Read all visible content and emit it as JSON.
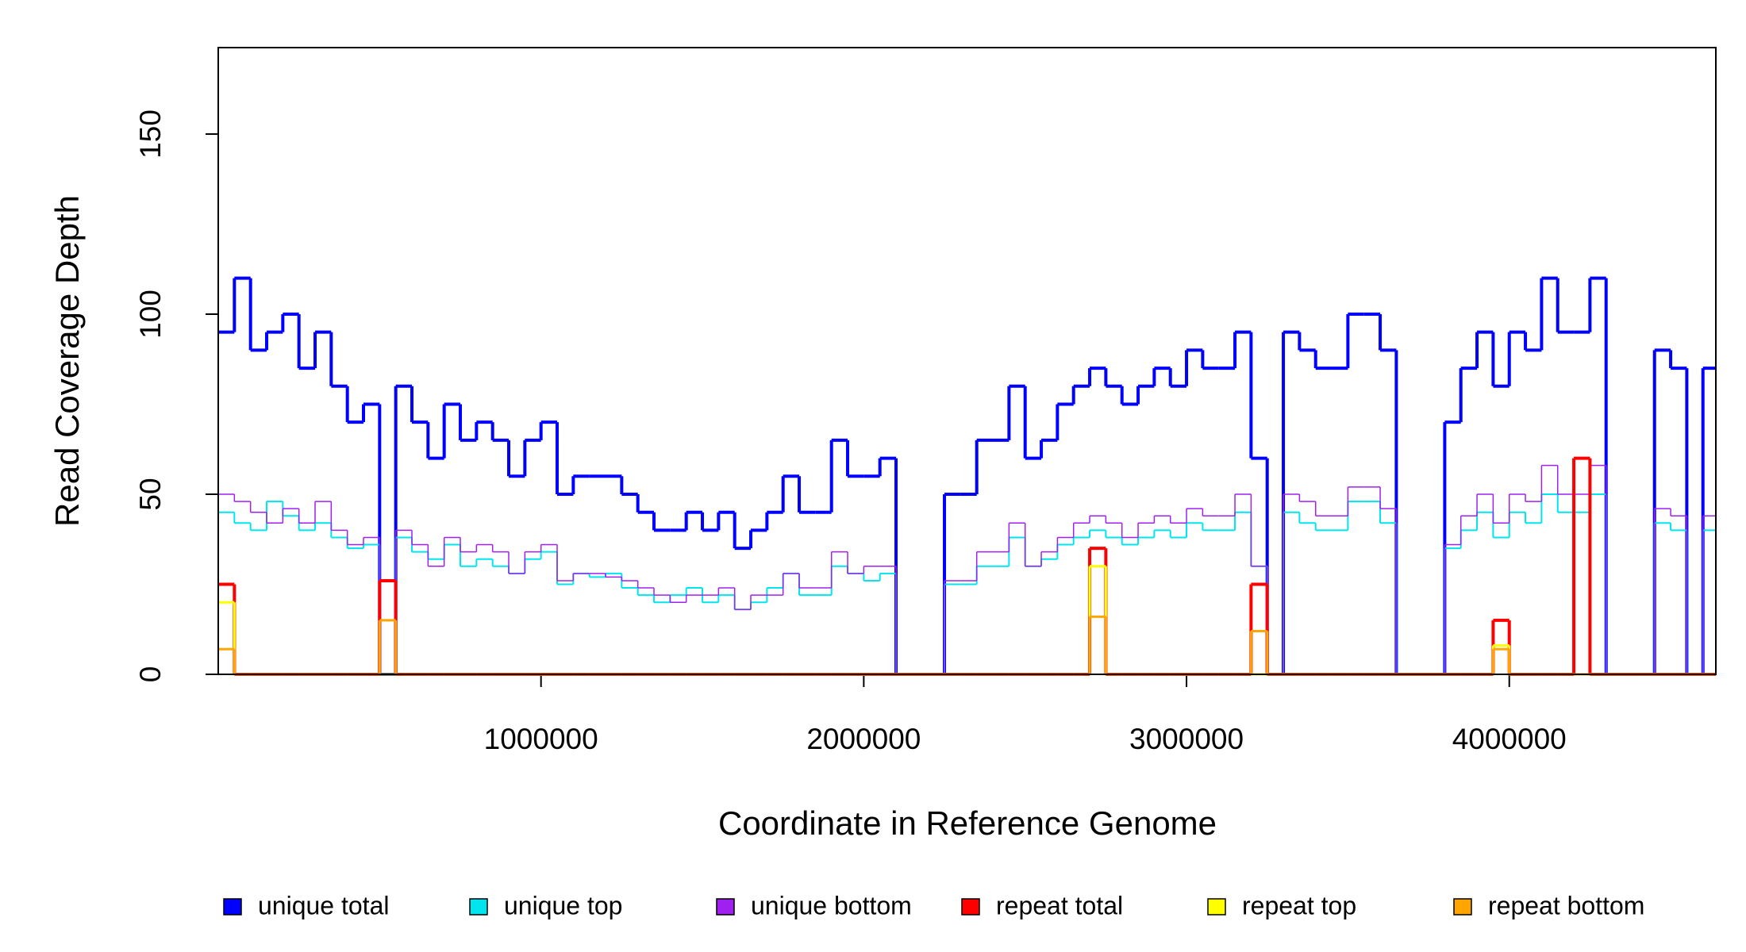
{
  "chart_data": {
    "type": "step",
    "xlabel": "Coordinate in Reference Genome",
    "ylabel": "Read Coverage Depth",
    "xlim": [
      0,
      4640000
    ],
    "ylim": [
      0,
      174
    ],
    "xticks": [
      1000000,
      2000000,
      3000000,
      4000000
    ],
    "yticks": [
      0,
      50,
      100,
      150
    ],
    "x": [
      0,
      50000,
      100000,
      150000,
      200000,
      250000,
      300000,
      350000,
      400000,
      450000,
      500000,
      550000,
      600000,
      650000,
      700000,
      750000,
      800000,
      850000,
      900000,
      950000,
      1000000,
      1050000,
      1100000,
      1150000,
      1200000,
      1250000,
      1300000,
      1350000,
      1400000,
      1450000,
      1500000,
      1550000,
      1600000,
      1650000,
      1700000,
      1750000,
      1800000,
      1850000,
      1900000,
      1950000,
      2000000,
      2050000,
      2100000,
      2150000,
      2200000,
      2250000,
      2300000,
      2350000,
      2400000,
      2450000,
      2500000,
      2550000,
      2600000,
      2650000,
      2700000,
      2750000,
      2800000,
      2850000,
      2900000,
      2950000,
      3000000,
      3050000,
      3100000,
      3150000,
      3200000,
      3250000,
      3300000,
      3350000,
      3400000,
      3450000,
      3500000,
      3550000,
      3600000,
      3650000,
      3700000,
      3750000,
      3800000,
      3850000,
      3900000,
      3950000,
      4000000,
      4050000,
      4100000,
      4150000,
      4200000,
      4250000,
      4300000,
      4350000,
      4400000,
      4450000,
      4500000,
      4550000,
      4600000
    ],
    "series": [
      {
        "name": "unique total",
        "color": "#0000ff",
        "values": [
          95,
          110,
          90,
          95,
          100,
          85,
          95,
          80,
          70,
          75,
          0,
          80,
          70,
          60,
          75,
          65,
          70,
          65,
          55,
          65,
          70,
          50,
          55,
          55,
          55,
          50,
          45,
          40,
          40,
          45,
          40,
          45,
          35,
          40,
          45,
          55,
          45,
          45,
          65,
          55,
          55,
          60,
          0,
          0,
          0,
          50,
          50,
          65,
          65,
          80,
          60,
          65,
          75,
          80,
          85,
          80,
          75,
          80,
          85,
          80,
          90,
          85,
          85,
          95,
          60,
          0,
          95,
          90,
          85,
          85,
          100,
          100,
          90,
          0,
          0,
          0,
          70,
          85,
          95,
          80,
          95,
          90,
          110,
          95,
          95,
          110,
          0,
          0,
          0,
          90,
          85,
          0,
          85
        ]
      },
      {
        "name": "unique top",
        "color": "#00e5ee",
        "values": [
          45,
          42,
          40,
          48,
          44,
          40,
          42,
          38,
          35,
          36,
          0,
          38,
          34,
          32,
          36,
          30,
          32,
          30,
          28,
          32,
          34,
          25,
          28,
          27,
          28,
          24,
          22,
          20,
          22,
          24,
          20,
          22,
          18,
          20,
          24,
          28,
          22,
          22,
          30,
          28,
          26,
          28,
          0,
          0,
          0,
          25,
          25,
          30,
          30,
          38,
          30,
          32,
          36,
          38,
          40,
          38,
          36,
          38,
          40,
          38,
          42,
          40,
          40,
          45,
          30,
          0,
          45,
          42,
          40,
          40,
          48,
          48,
          42,
          0,
          0,
          0,
          35,
          40,
          45,
          38,
          45,
          42,
          50,
          45,
          45,
          50,
          0,
          0,
          0,
          42,
          40,
          0,
          40
        ]
      },
      {
        "name": "unique bottom",
        "color": "#a020f0",
        "values": [
          50,
          48,
          45,
          42,
          46,
          42,
          48,
          40,
          36,
          38,
          0,
          40,
          36,
          30,
          38,
          34,
          36,
          34,
          28,
          34,
          36,
          26,
          28,
          28,
          27,
          26,
          24,
          22,
          20,
          22,
          22,
          24,
          18,
          22,
          22,
          28,
          24,
          24,
          34,
          28,
          30,
          30,
          0,
          0,
          0,
          26,
          26,
          34,
          34,
          42,
          30,
          34,
          38,
          42,
          44,
          42,
          38,
          42,
          44,
          42,
          46,
          44,
          44,
          50,
          30,
          0,
          50,
          48,
          44,
          44,
          52,
          52,
          46,
          0,
          0,
          0,
          36,
          44,
          50,
          42,
          50,
          48,
          58,
          50,
          50,
          58,
          0,
          0,
          0,
          46,
          44,
          0,
          44
        ]
      },
      {
        "name": "repeat total",
        "color": "#ff0000",
        "values": [
          25,
          0,
          0,
          0,
          0,
          0,
          0,
          0,
          0,
          0,
          26,
          0,
          0,
          0,
          0,
          0,
          0,
          0,
          0,
          0,
          0,
          0,
          0,
          0,
          0,
          0,
          0,
          0,
          0,
          0,
          0,
          0,
          0,
          0,
          0,
          0,
          0,
          0,
          0,
          0,
          0,
          0,
          0,
          0,
          0,
          0,
          0,
          0,
          0,
          0,
          0,
          0,
          0,
          0,
          35,
          0,
          0,
          0,
          0,
          0,
          0,
          0,
          0,
          0,
          25,
          0,
          0,
          0,
          0,
          0,
          0,
          0,
          0,
          0,
          0,
          0,
          0,
          0,
          0,
          15,
          0,
          0,
          0,
          0,
          60,
          0,
          0,
          0,
          0,
          0,
          0,
          0,
          0
        ]
      },
      {
        "name": "repeat top",
        "color": "#ffff00",
        "values": [
          20,
          0,
          0,
          0,
          0,
          0,
          0,
          0,
          0,
          0,
          0,
          0,
          0,
          0,
          0,
          0,
          0,
          0,
          0,
          0,
          0,
          0,
          0,
          0,
          0,
          0,
          0,
          0,
          0,
          0,
          0,
          0,
          0,
          0,
          0,
          0,
          0,
          0,
          0,
          0,
          0,
          0,
          0,
          0,
          0,
          0,
          0,
          0,
          0,
          0,
          0,
          0,
          0,
          0,
          30,
          0,
          0,
          0,
          0,
          0,
          0,
          0,
          0,
          0,
          0,
          0,
          0,
          0,
          0,
          0,
          0,
          0,
          0,
          0,
          0,
          0,
          0,
          0,
          0,
          8,
          0,
          0,
          0,
          0,
          0,
          0,
          0,
          0,
          0,
          0,
          0,
          0,
          0
        ]
      },
      {
        "name": "repeat bottom",
        "color": "#ffa500",
        "values": [
          7,
          0,
          0,
          0,
          0,
          0,
          0,
          0,
          0,
          0,
          15,
          0,
          0,
          0,
          0,
          0,
          0,
          0,
          0,
          0,
          0,
          0,
          0,
          0,
          0,
          0,
          0,
          0,
          0,
          0,
          0,
          0,
          0,
          0,
          0,
          0,
          0,
          0,
          0,
          0,
          0,
          0,
          0,
          0,
          0,
          0,
          0,
          0,
          0,
          0,
          0,
          0,
          0,
          0,
          16,
          0,
          0,
          0,
          0,
          0,
          0,
          0,
          0,
          0,
          12,
          0,
          0,
          0,
          0,
          0,
          0,
          0,
          0,
          0,
          0,
          0,
          0,
          0,
          0,
          7,
          0,
          0,
          0,
          0,
          0,
          0,
          0,
          0,
          0,
          0,
          0,
          0,
          0
        ]
      }
    ]
  }
}
